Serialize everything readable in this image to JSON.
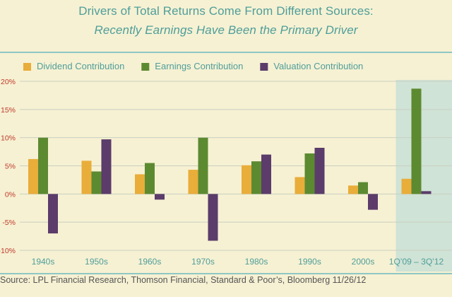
{
  "title": "Drivers of Total Returns Come From Different Sources:",
  "subtitle": "Recently Earnings Have Been the Primary Driver",
  "source": "Source: LPL Financial Research, Thomson Financial, Standard & Poor’s, Bloomberg   11/26/12",
  "chart_data": {
    "type": "bar",
    "categories": [
      "1940s",
      "1950s",
      "1960s",
      "1970s",
      "1980s",
      "1990s",
      "2000s",
      "1Q’09 – 3Q’12"
    ],
    "series": [
      {
        "name": "Dividend Contribution",
        "color": "#e9ad3a",
        "values": [
          6.2,
          5.9,
          3.5,
          4.3,
          5.1,
          3.0,
          1.5,
          2.7
        ]
      },
      {
        "name": "Earnings Contribution",
        "color": "#5c8a31",
        "values": [
          10.0,
          4.0,
          5.5,
          10.0,
          5.8,
          7.2,
          2.1,
          18.7
        ]
      },
      {
        "name": "Valuation Contribution",
        "color": "#5b3c6a",
        "values": [
          -7.0,
          9.7,
          -1.0,
          -8.3,
          7.0,
          8.2,
          -2.8,
          0.5
        ]
      }
    ],
    "yticks": [
      "20%",
      "15%",
      "10%",
      "5%",
      "0%",
      "-5%",
      "-10%"
    ],
    "ylim": [
      -10,
      20
    ],
    "grid": true,
    "legend": "top",
    "highlight_category": "1Q’09 – 3Q’12",
    "xlabel": "",
    "ylabel": ""
  }
}
